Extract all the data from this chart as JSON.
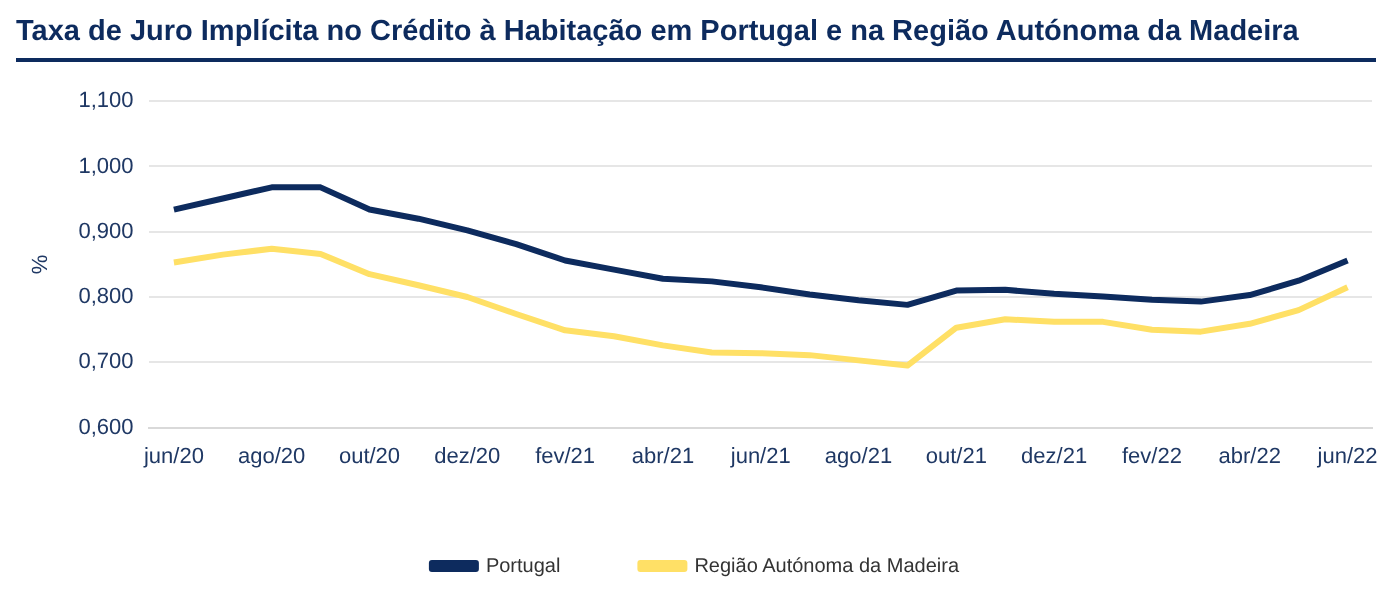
{
  "chart_data": {
    "type": "line",
    "title": "Taxa de Juro Implícita no Crédito à Habitação em Portugal e na Região Autónoma da Madeira",
    "ylabel": "%",
    "categories": [
      "jun/20",
      null,
      "ago/20",
      null,
      "out/20",
      null,
      "dez/20",
      null,
      "fev/21",
      null,
      "abr/21",
      null,
      "jun/21",
      null,
      "ago/21",
      null,
      "out/21",
      null,
      "dez/21",
      null,
      "fev/22",
      null,
      "abr/22",
      null,
      "jun/22"
    ],
    "series": [
      {
        "name": "Portugal",
        "color": "#0d2b5e",
        "values": [
          0.934,
          0.951,
          0.968,
          0.968,
          0.934,
          0.92,
          0.902,
          0.881,
          0.856,
          0.842,
          0.828,
          0.824,
          0.815,
          0.804,
          0.795,
          0.788,
          0.81,
          0.811,
          0.805,
          0.801,
          0.796,
          0.793,
          0.803,
          0.825,
          0.856
        ]
      },
      {
        "name": "Região Autónoma da Madeira",
        "color": "#ffe066",
        "values": [
          0.853,
          0.865,
          0.874,
          0.866,
          0.835,
          0.818,
          0.8,
          0.774,
          0.749,
          0.74,
          0.726,
          0.715,
          0.714,
          0.711,
          0.703,
          0.695,
          0.753,
          0.766,
          0.762,
          0.762,
          0.75,
          0.747,
          0.759,
          0.78,
          0.815
        ]
      }
    ],
    "ylim": [
      0.6,
      1.1
    ],
    "yticks": [
      {
        "value": 0.6,
        "label": "0,600"
      },
      {
        "value": 0.7,
        "label": "0,700"
      },
      {
        "value": 0.8,
        "label": "0,800"
      },
      {
        "value": 0.9,
        "label": "0,900"
      },
      {
        "value": 1.0,
        "label": "1,000"
      },
      {
        "value": 1.1,
        "label": "1,100"
      }
    ],
    "grid": "y",
    "legend": "bottom",
    "marker": "none",
    "line_style": "solid"
  }
}
